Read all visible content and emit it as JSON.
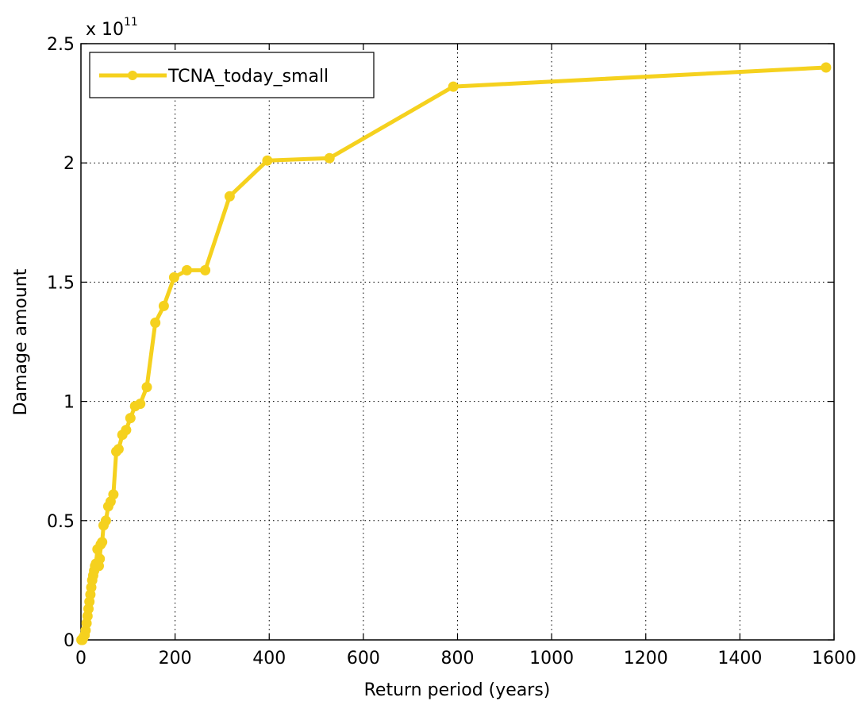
{
  "chart_data": {
    "type": "line",
    "xlabel": "Return period (years)",
    "ylabel": "Damage amount",
    "y_exponent_label": "x 10",
    "y_exponent": "11",
    "xlim": [
      0,
      1600
    ],
    "ylim": [
      0,
      2.5
    ],
    "x_ticks": [
      0,
      200,
      400,
      600,
      800,
      1000,
      1200,
      1400,
      1600
    ],
    "y_ticks": [
      0,
      0.5,
      1,
      1.5,
      2,
      2.5
    ],
    "x_tick_labels": [
      "0",
      "200",
      "400",
      "600",
      "800",
      "1000",
      "1200",
      "1400",
      "1600"
    ],
    "y_tick_labels": [
      "0",
      "0.5",
      "1",
      "1.5",
      "2",
      "2.5"
    ],
    "grid": true,
    "grid_style": "dotted",
    "legend_placement": "top-left",
    "line_color": "#f5d11e",
    "series": [
      {
        "name": "TCNA_today_small",
        "x": [
          1,
          2,
          3,
          5,
          8,
          10,
          12,
          14,
          16,
          18,
          20,
          22,
          24,
          26,
          28,
          30,
          32,
          35,
          38,
          40,
          42,
          45,
          48,
          53,
          58,
          63,
          69,
          75,
          80,
          88,
          96,
          105,
          115,
          126,
          140,
          158,
          176,
          198,
          225,
          264,
          316,
          396,
          528,
          791,
          1583
        ],
        "y": [
          0.0,
          0.0,
          0.0,
          0.01,
          0.02,
          0.04,
          0.07,
          0.1,
          0.13,
          0.16,
          0.19,
          0.22,
          0.25,
          0.27,
          0.29,
          0.31,
          0.32,
          0.38,
          0.31,
          0.34,
          0.4,
          0.41,
          0.48,
          0.5,
          0.56,
          0.58,
          0.61,
          0.79,
          0.8,
          0.86,
          0.88,
          0.93,
          0.98,
          0.99,
          1.06,
          1.33,
          1.4,
          1.52,
          1.55,
          1.55,
          1.86,
          2.01,
          2.02,
          2.32,
          2.4
        ]
      }
    ]
  }
}
